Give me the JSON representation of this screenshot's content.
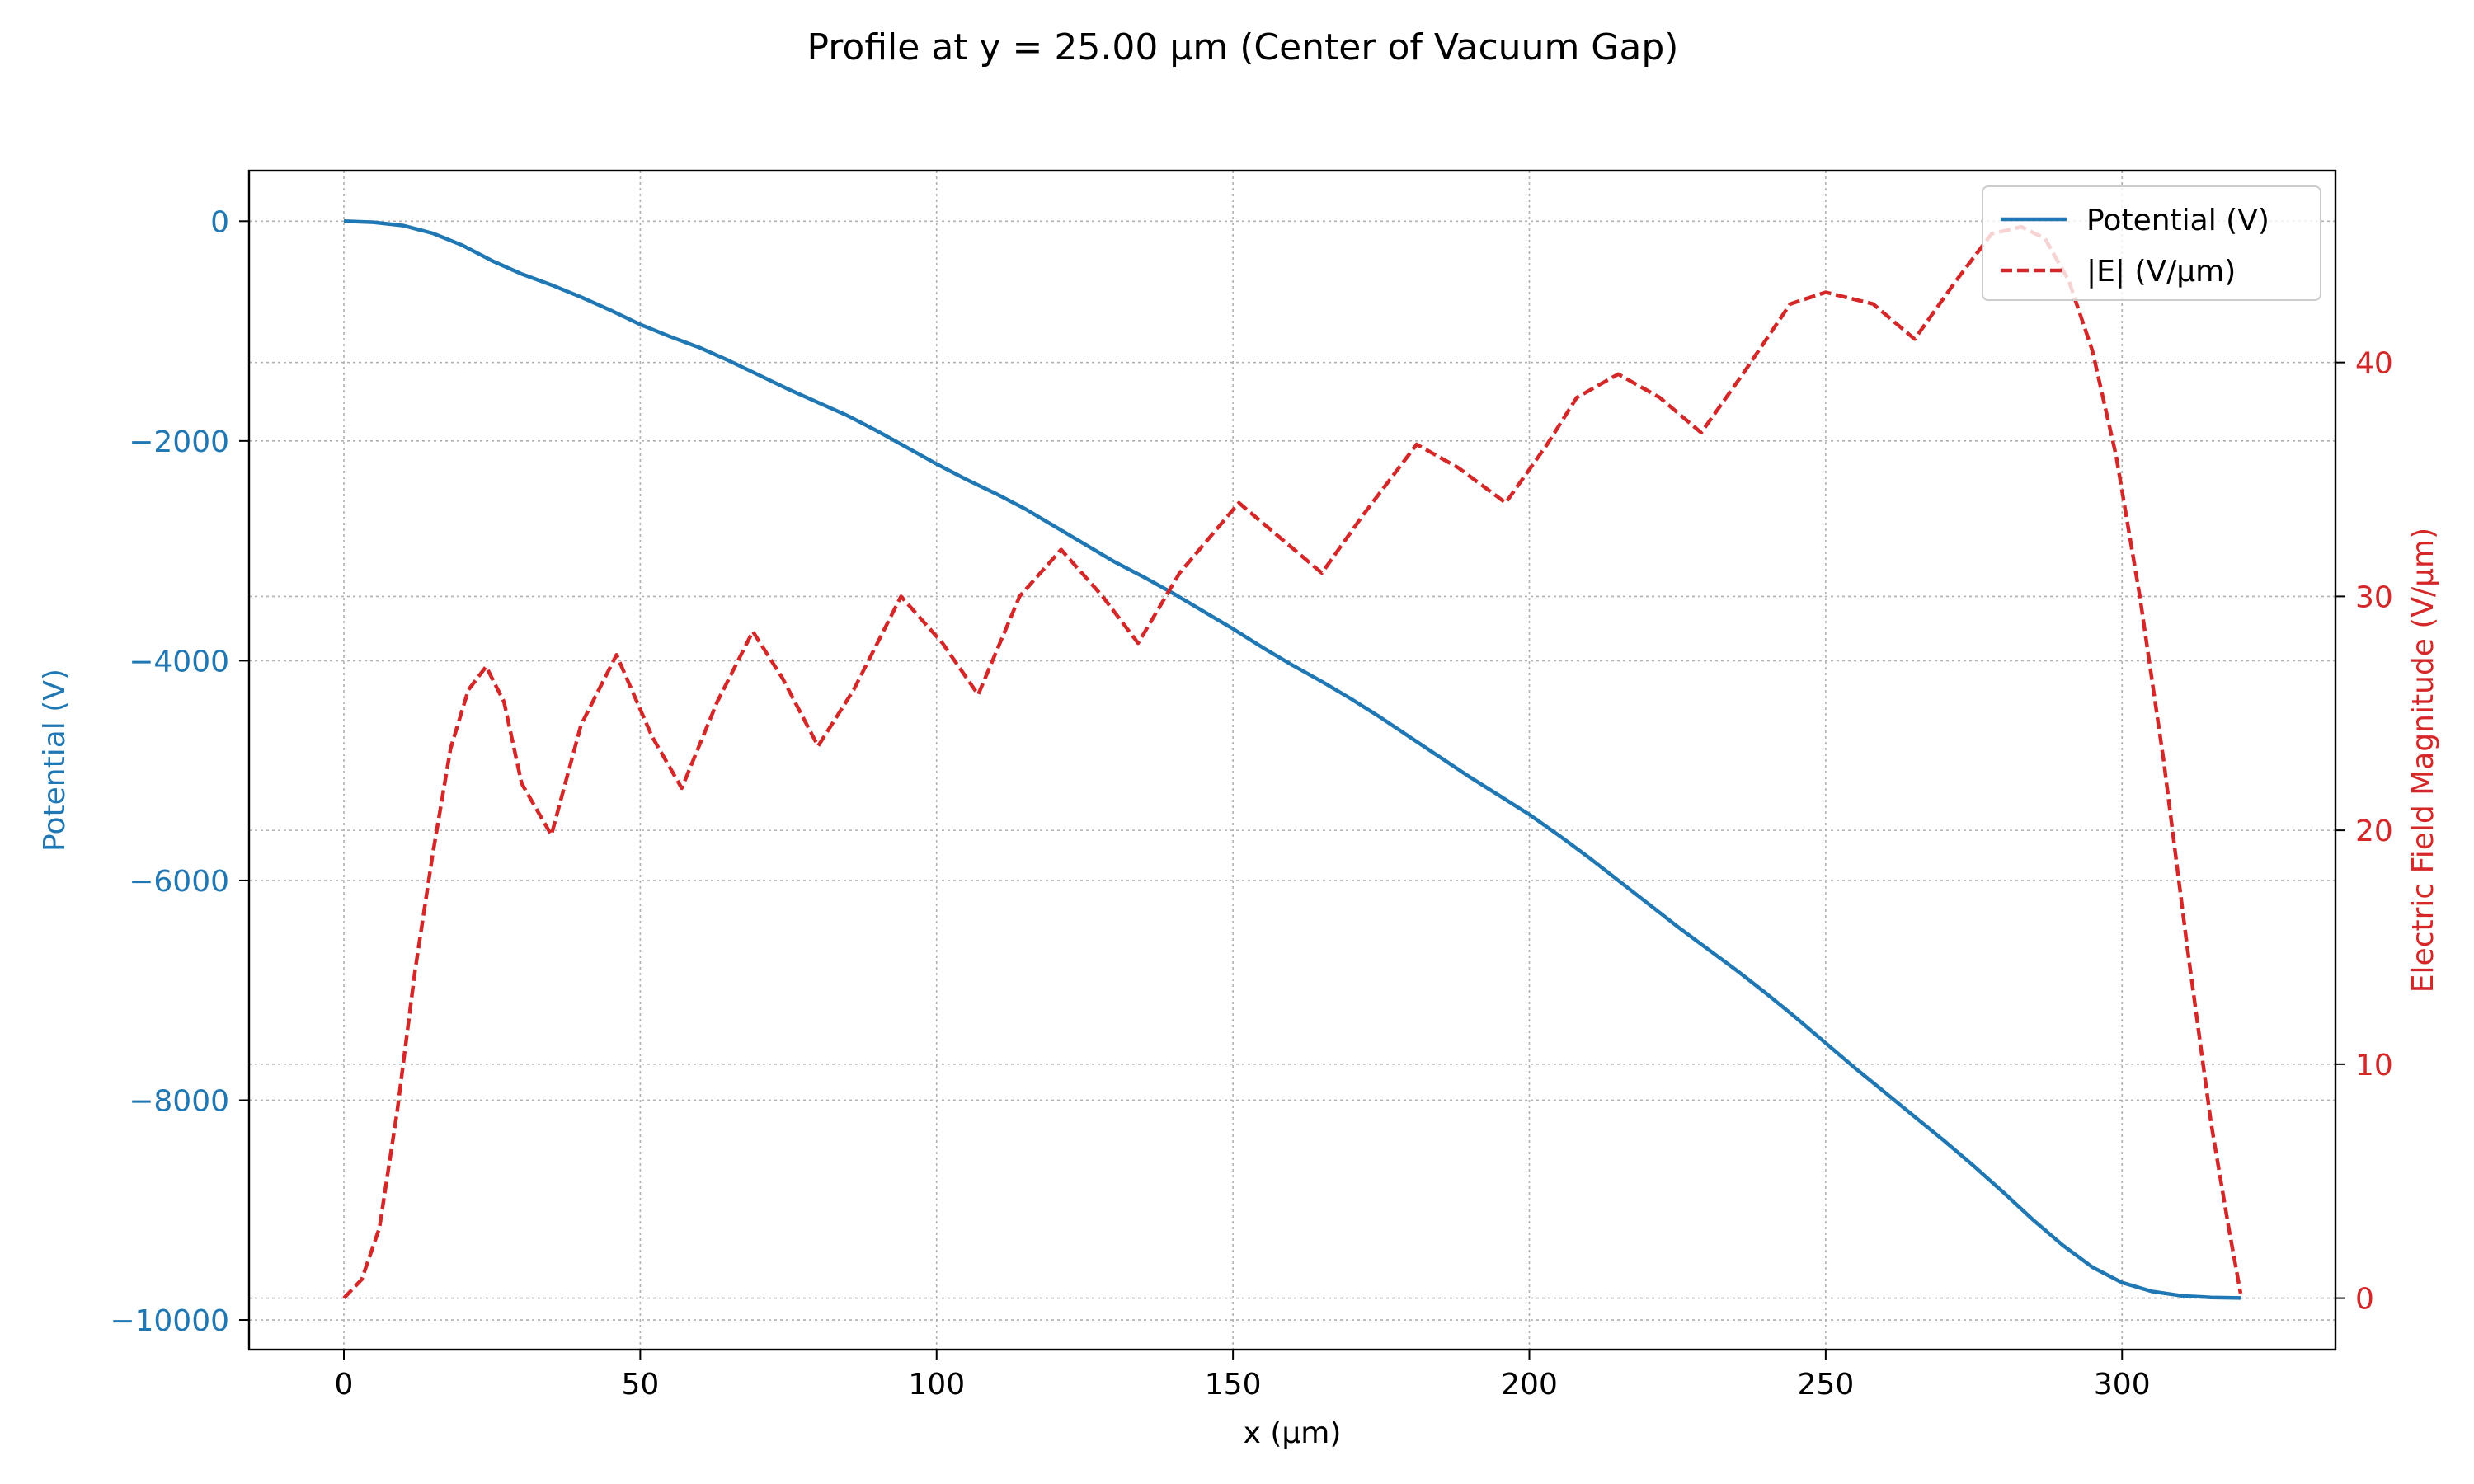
{
  "chart_data": {
    "type": "line",
    "title": "Profile at y = 25.00 µm (Center of Vacuum Gap)",
    "xlabel": "x (µm)",
    "ylabel_left": "Potential (V)",
    "ylabel_right": "Electric Field Magnitude (V/µm)",
    "xlim": [
      -16,
      336
    ],
    "ylim_left": [
      -10270,
      460
    ],
    "ylim_right": [
      -2.2,
      48.2
    ],
    "x_ticks": [
      0,
      50,
      100,
      150,
      200,
      250,
      300
    ],
    "x_tick_labels": [
      "0",
      "50",
      "100",
      "150",
      "200",
      "250",
      "300"
    ],
    "y_left_ticks": [
      0,
      -2000,
      -4000,
      -6000,
      -8000,
      -10000
    ],
    "y_left_tick_labels": [
      "0",
      "−2000",
      "−4000",
      "−6000",
      "−8000",
      "−10000"
    ],
    "y_right_ticks": [
      0,
      10,
      20,
      30,
      40
    ],
    "y_right_tick_labels": [
      "0",
      "10",
      "20",
      "30",
      "40"
    ],
    "grid": true,
    "legend_position": "top-right",
    "colors": {
      "potential": "#1f77b4",
      "efield": "#d62728",
      "grid": "#b0b0b0",
      "axis": "#000000"
    },
    "series": [
      {
        "name": "Potential (V)",
        "axis": "left",
        "style": "solid",
        "x": [
          0,
          5,
          10,
          15,
          20,
          25,
          30,
          35,
          40,
          45,
          50,
          55,
          60,
          65,
          70,
          75,
          80,
          85,
          90,
          95,
          100,
          105,
          110,
          115,
          120,
          125,
          130,
          135,
          140,
          145,
          150,
          155,
          160,
          165,
          170,
          175,
          180,
          185,
          190,
          195,
          200,
          205,
          210,
          215,
          220,
          225,
          230,
          235,
          240,
          245,
          250,
          255,
          260,
          265,
          270,
          275,
          280,
          285,
          290,
          295,
          300,
          305,
          310,
          315,
          320
        ],
        "values": [
          0,
          -10,
          -40,
          -110,
          -220,
          -360,
          -480,
          -580,
          -690,
          -810,
          -940,
          -1050,
          -1150,
          -1270,
          -1400,
          -1530,
          -1650,
          -1770,
          -1910,
          -2060,
          -2210,
          -2350,
          -2480,
          -2620,
          -2780,
          -2940,
          -3100,
          -3240,
          -3390,
          -3550,
          -3710,
          -3880,
          -4040,
          -4190,
          -4350,
          -4520,
          -4700,
          -4880,
          -5060,
          -5230,
          -5400,
          -5590,
          -5790,
          -6000,
          -6210,
          -6420,
          -6620,
          -6820,
          -7030,
          -7250,
          -7480,
          -7710,
          -7930,
          -8150,
          -8370,
          -8600,
          -8840,
          -9090,
          -9320,
          -9520,
          -9660,
          -9740,
          -9780,
          -9795,
          -9800
        ]
      },
      {
        "name": "|E| (V/µm)",
        "axis": "right",
        "style": "dashed",
        "x": [
          0,
          3,
          6,
          9,
          12,
          15,
          18,
          21,
          24,
          27,
          30,
          35,
          40,
          46,
          52,
          57,
          63,
          69,
          74,
          80,
          86,
          94,
          101,
          107,
          114,
          121,
          128,
          134,
          141,
          151,
          158,
          165,
          172,
          181,
          188,
          196,
          203,
          208,
          215,
          222,
          229,
          236,
          244,
          250,
          258,
          265,
          272,
          278,
          283,
          287,
          291,
          295,
          299,
          303,
          307,
          311,
          315,
          318,
          320
        ],
        "values": [
          0,
          0.8,
          3,
          8,
          14,
          19,
          23.5,
          26,
          27,
          25.5,
          22,
          19.8,
          24.5,
          27.5,
          24,
          21.8,
          25.5,
          28.5,
          26.5,
          23.6,
          26,
          30,
          28,
          25.8,
          30,
          32,
          30,
          28,
          31,
          34,
          32.5,
          31,
          33.5,
          36.5,
          35.5,
          34,
          36.5,
          38.5,
          39.5,
          38.5,
          37,
          39.5,
          42.5,
          43,
          42.5,
          41,
          43.5,
          45.5,
          45.8,
          45.3,
          43.5,
          40.5,
          36,
          30,
          23,
          15,
          7.5,
          3,
          0.2
        ]
      }
    ]
  }
}
